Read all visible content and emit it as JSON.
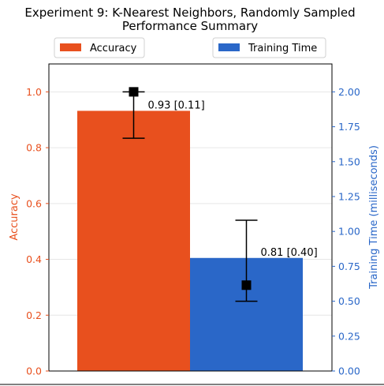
{
  "chart_data": {
    "type": "bar",
    "title_line1": "Experiment 9: K-Nearest Neighbors, Randomly Sampled",
    "title_line2": "Performance Summary",
    "colors": {
      "accuracy": "#e8501e",
      "training_time": "#2a67c8",
      "marker": "#000000"
    },
    "legend": [
      {
        "label": "Accuracy",
        "color": "#e8501e"
      },
      {
        "label": "Training Time",
        "color": "#2a67c8"
      }
    ],
    "legend_placement": "top, outside plot",
    "grid": true,
    "left_axis": {
      "label": "Accuracy",
      "ylim": [
        0,
        1.1
      ],
      "ticks": [
        "0.0",
        "0.2",
        "0.4",
        "0.6",
        "0.8",
        "1.0"
      ],
      "tick_values": [
        0,
        0.2,
        0.4,
        0.6,
        0.8,
        1.0
      ]
    },
    "right_axis": {
      "label": "Training Time (milliseconds)",
      "ylim": [
        0,
        2.2
      ],
      "ticks": [
        "0.00",
        "0.25",
        "0.50",
        "0.75",
        "1.00",
        "1.25",
        "1.50",
        "1.75",
        "2.00"
      ],
      "tick_values": [
        0,
        0.25,
        0.5,
        0.75,
        1.0,
        1.25,
        1.5,
        1.75,
        2.0
      ]
    },
    "series": [
      {
        "name": "Accuracy",
        "axis": "left",
        "value": 0.932,
        "label": "0.93 [0.11]",
        "marker_value": 1.0,
        "error_range": [
          0.834,
          1.0
        ]
      },
      {
        "name": "Training Time",
        "axis": "right",
        "value": 0.81,
        "label": "0.81 [0.40]",
        "marker_value": 0.615,
        "error_range": [
          0.5,
          1.08
        ]
      }
    ]
  }
}
